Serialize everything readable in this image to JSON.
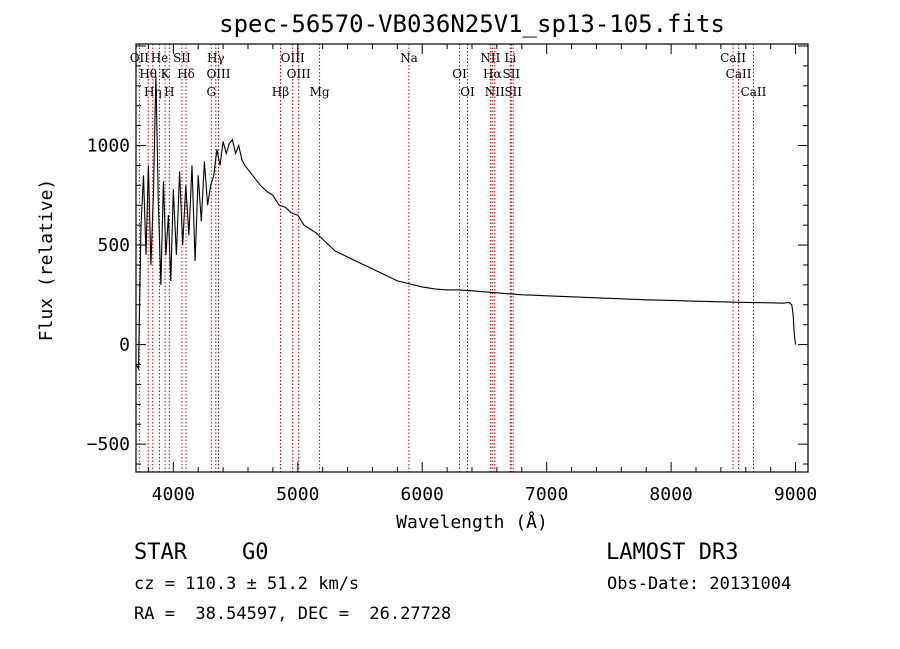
{
  "chart_data": {
    "type": "line",
    "title": "spec-56570-VB036N25V1_sp13-105.fits",
    "xlabel": "Wavelength (Å)",
    "ylabel": "Flux (relative)",
    "xlim": [
      3700,
      9100
    ],
    "ylim": [
      -640,
      1510
    ],
    "x_ticks": [
      4000,
      5000,
      6000,
      7000,
      8000,
      9000
    ],
    "y_ticks": [
      -500,
      0,
      500,
      1000
    ],
    "x_tick_labels": [
      "4000",
      "5000",
      "6000",
      "7000",
      "8000",
      "9000"
    ],
    "y_tick_labels": [
      "−500",
      "0",
      "500",
      "1000"
    ],
    "series": [
      {
        "name": "flux",
        "x": [
          3700,
          3720,
          3740,
          3760,
          3780,
          3800,
          3820,
          3840,
          3860,
          3880,
          3900,
          3920,
          3940,
          3960,
          3980,
          4000,
          4025,
          4050,
          4075,
          4100,
          4125,
          4150,
          4175,
          4200,
          4225,
          4250,
          4275,
          4300,
          4325,
          4350,
          4375,
          4400,
          4425,
          4450,
          4475,
          4500,
          4525,
          4550,
          4575,
          4600,
          4650,
          4700,
          4750,
          4800,
          4850,
          4900,
          4950,
          5000,
          5050,
          5100,
          5150,
          5200,
          5250,
          5300,
          5400,
          5500,
          5600,
          5700,
          5800,
          5900,
          6000,
          6100,
          6200,
          6300,
          6400,
          6500,
          6600,
          6700,
          6800,
          6900,
          7000,
          7200,
          7400,
          7600,
          7800,
          8000,
          8200,
          8400,
          8600,
          8800,
          8900,
          8950,
          8960,
          8970,
          8980,
          8990,
          9000
        ],
        "values": [
          -100,
          -120,
          600,
          850,
          450,
          900,
          400,
          750,
          1350,
          700,
          300,
          820,
          450,
          650,
          320,
          780,
          450,
          870,
          500,
          800,
          550,
          900,
          420,
          850,
          620,
          920,
          700,
          800,
          850,
          980,
          900,
          1020,
          960,
          1010,
          1030,
          960,
          1000,
          930,
          900,
          880,
          840,
          800,
          770,
          750,
          700,
          690,
          660,
          650,
          600,
          580,
          560,
          530,
          500,
          470,
          440,
          410,
          380,
          350,
          320,
          305,
          290,
          280,
          275,
          275,
          270,
          265,
          260,
          255,
          250,
          248,
          245,
          240,
          235,
          230,
          225,
          222,
          218,
          215,
          212,
          210,
          208,
          212,
          205,
          200,
          150,
          50,
          0
        ]
      }
    ],
    "emission_lines": [
      {
        "name": "OⅠⅠ",
        "wavelength": 3727
      },
      {
        "name": "Hθ",
        "wavelength": 3798
      },
      {
        "name": "Hη",
        "wavelength": 3835
      },
      {
        "name": "He",
        "wavelength": 3889
      },
      {
        "name": "K",
        "wavelength": 3934
      },
      {
        "name": "H",
        "wavelength": 3968
      },
      {
        "name": "SⅠⅠ",
        "wavelength": 4069
      },
      {
        "name": "Hδ",
        "wavelength": 4102
      },
      {
        "name": "G",
        "wavelength": 4305
      },
      {
        "name": "Hγ",
        "wavelength": 4341
      },
      {
        "name": "OⅠⅠⅠ",
        "wavelength": 4363
      },
      {
        "name": "Hβ",
        "wavelength": 4861
      },
      {
        "name": "OⅠⅠⅠ",
        "wavelength": 4959
      },
      {
        "name": "OⅠⅠⅠ",
        "wavelength": 5007
      },
      {
        "name": "Mg",
        "wavelength": 5175
      },
      {
        "name": "Na",
        "wavelength": 5893
      },
      {
        "name": "OⅠ",
        "wavelength": 6300
      },
      {
        "name": "OⅠ",
        "wavelength": 6364
      },
      {
        "name": "NⅠⅠ",
        "wavelength": 6548
      },
      {
        "name": "Hα",
        "wavelength": 6563
      },
      {
        "name": "NⅠⅠ",
        "wavelength": 6583
      },
      {
        "name": "Li",
        "wavelength": 6708
      },
      {
        "name": "SⅠⅠ",
        "wavelength": 6716
      },
      {
        "name": "SⅠⅠ",
        "wavelength": 6731
      },
      {
        "name": "CaⅠⅠ",
        "wavelength": 8498
      },
      {
        "name": "CaⅠⅠ",
        "wavelength": 8542
      },
      {
        "name": "CaⅠⅠ",
        "wavelength": 8662
      }
    ],
    "line_colors": {
      "spectrum": "#000000",
      "emission_lines": "#cc0000",
      "axes": "#000000"
    }
  },
  "info": {
    "class": "STAR",
    "subclass": "G0",
    "survey": "LAMOST DR3",
    "cz": "cz = 110.3 ± 51.2 km/s",
    "obs_date": "Obs-Date: 20131004",
    "coords": "RA =  38.54597, DEC =  26.27728"
  }
}
